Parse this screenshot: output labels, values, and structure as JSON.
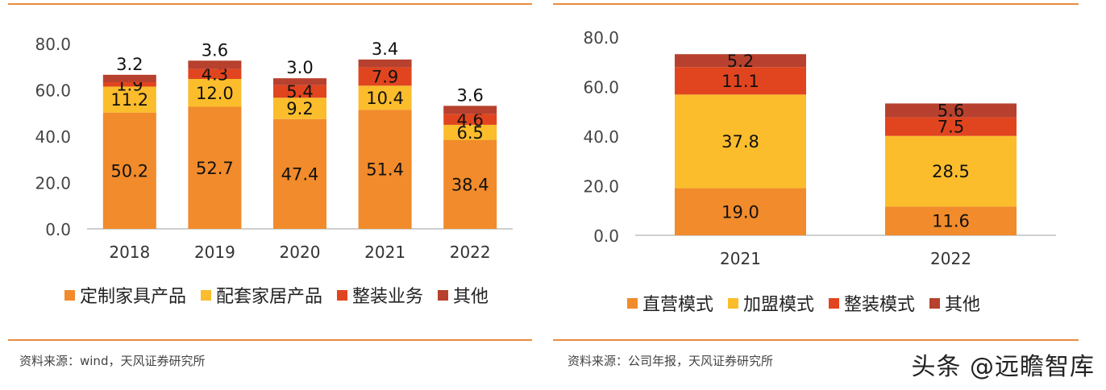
{
  "colors": {
    "orange": "#f18b2b",
    "yellow": "#fbbd2c",
    "red": "#e1451f",
    "dark_red": "#b7412e",
    "rule": "#e98b3f"
  },
  "chart_data": [
    {
      "type": "bar",
      "stacked": true,
      "categories": [
        "2018",
        "2019",
        "2020",
        "2021",
        "2022"
      ],
      "series": [
        {
          "name": "定制家具产品",
          "values": [
            50.2,
            52.7,
            47.4,
            51.4,
            38.4
          ]
        },
        {
          "name": "配套家居产品",
          "values": [
            11.2,
            12.0,
            9.2,
            10.4,
            6.5
          ]
        },
        {
          "name": "整装业务",
          "values": [
            1.9,
            4.3,
            5.4,
            7.9,
            4.6
          ]
        },
        {
          "name": "其他",
          "values": [
            3.2,
            3.6,
            3.0,
            3.4,
            3.6
          ]
        }
      ],
      "yticks": [
        "0.0",
        "20.0",
        "40.0",
        "60.0",
        "80.0"
      ],
      "ylim": [
        0,
        80
      ],
      "legend": "bottom",
      "source": "资料来源：wind，天风证券研究所"
    },
    {
      "type": "bar",
      "stacked": true,
      "categories": [
        "2021",
        "2022"
      ],
      "series": [
        {
          "name": "直营模式",
          "values": [
            19.0,
            11.6
          ]
        },
        {
          "name": "加盟模式",
          "values": [
            37.8,
            28.5
          ]
        },
        {
          "name": "整装模式",
          "values": [
            11.1,
            7.5
          ]
        },
        {
          "name": "其他",
          "values": [
            5.2,
            5.6
          ]
        }
      ],
      "yticks": [
        "0.0",
        "20.0",
        "40.0",
        "60.0",
        "80.0"
      ],
      "ylim": [
        0,
        80
      ],
      "legend": "bottom",
      "source": "资料来源：公司年报，天风证券研究所"
    }
  ],
  "watermark": "头条 @远瞻智库"
}
